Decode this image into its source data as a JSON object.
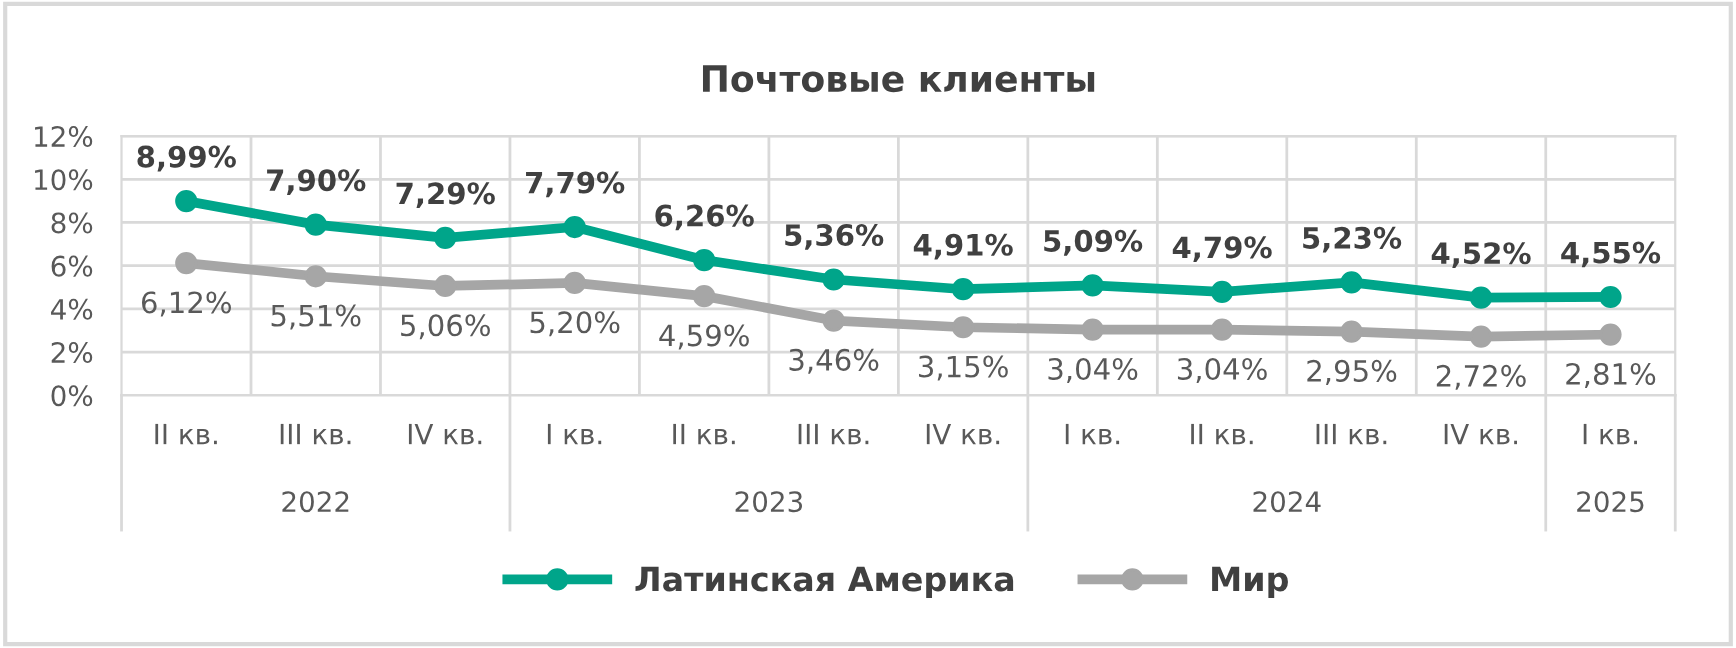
{
  "chart_data": {
    "type": "line",
    "title": "Почтовые клиенты",
    "categories": [
      "II кв.",
      "III кв.",
      "IV кв.",
      "I кв.",
      "II кв.",
      "III кв.",
      "IV кв.",
      "I кв.",
      "II кв.",
      "III кв.",
      "IV кв.",
      "I кв."
    ],
    "series": [
      {
        "name": "Латинская Америка",
        "color": "#00a58a",
        "values": [
          8.99,
          7.9,
          7.29,
          7.79,
          6.26,
          5.36,
          4.91,
          5.09,
          4.79,
          5.23,
          4.52,
          4.55
        ],
        "value_labels": [
          "8,99%",
          "7,90%",
          "7,29%",
          "7,79%",
          "6,26%",
          "5,36%",
          "4,91%",
          "5,09%",
          "4,79%",
          "5,23%",
          "4,52%",
          "4,55%"
        ]
      },
      {
        "name": "Мир",
        "color": "#a6a6a6",
        "values": [
          6.12,
          5.51,
          5.06,
          5.2,
          4.59,
          3.46,
          3.15,
          3.04,
          3.04,
          2.95,
          2.72,
          2.81
        ],
        "value_labels": [
          "6,12%",
          "5,51%",
          "5,06%",
          "5,20%",
          "4,59%",
          "3,46%",
          "3,15%",
          "3,04%",
          "3,04%",
          "2,95%",
          "2,72%",
          "2,81%"
        ]
      }
    ],
    "ylim": [
      0,
      12
    ],
    "yticks": [
      {
        "value": 0,
        "label": "0%"
      },
      {
        "value": 2,
        "label": "2%"
      },
      {
        "value": 4,
        "label": "4%"
      },
      {
        "value": 6,
        "label": "6%"
      },
      {
        "value": 8,
        "label": "8%"
      },
      {
        "value": 10,
        "label": "10%"
      },
      {
        "value": 12,
        "label": "12%"
      }
    ],
    "annotations": [
      "2022",
      "2023",
      "2024",
      "2025"
    ],
    "grid": true,
    "legend": "bottom",
    "marker": "circle",
    "line_style": "solid"
  }
}
